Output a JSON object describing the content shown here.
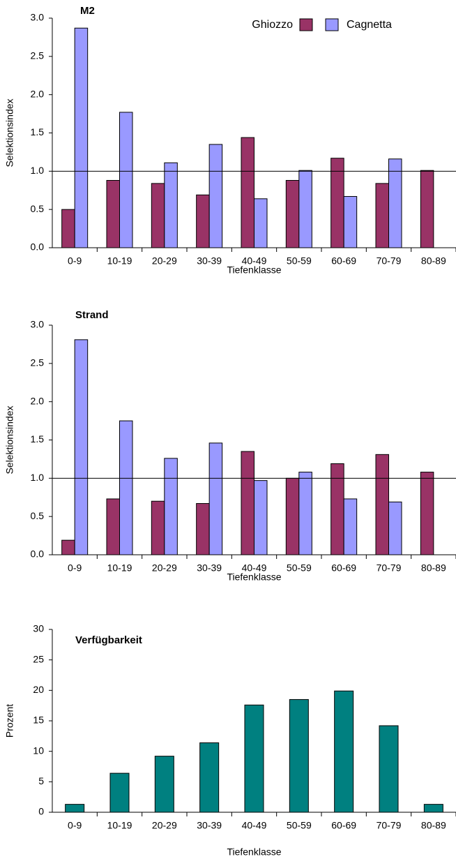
{
  "chart_data": [
    {
      "type": "bar",
      "title": "M2",
      "x_label": "Tiefenklasse",
      "y_label": "Selektionsindex",
      "categories": [
        "0-9",
        "10-19",
        "20-29",
        "30-39",
        "40-49",
        "50-59",
        "60-69",
        "70-79",
        "80-89"
      ],
      "series": [
        {
          "name": "Ghiozzo",
          "color": "#993366",
          "values": [
            0.5,
            0.88,
            0.84,
            0.69,
            1.44,
            0.88,
            1.17,
            0.84,
            1.01
          ]
        },
        {
          "name": "Cagnetta",
          "color": "#9999ff",
          "values": [
            2.87,
            1.77,
            1.11,
            1.35,
            0.64,
            1.01,
            0.67,
            1.16,
            null
          ]
        }
      ],
      "ylim": [
        0,
        3
      ],
      "yticks": [
        {
          "value": 0,
          "label": "0.0"
        },
        {
          "value": 0.5,
          "label": "0.5"
        },
        {
          "value": 1,
          "label": "1.0"
        },
        {
          "value": 1.5,
          "label": "1.5"
        },
        {
          "value": 2,
          "label": "2.0"
        },
        {
          "value": 2.5,
          "label": "2.5"
        },
        {
          "value": 3,
          "label": "3.0"
        }
      ],
      "reference_line": 1,
      "legend": "top"
    },
    {
      "type": "bar",
      "title": "Strand",
      "x_label": "Tiefenklasse",
      "y_label": "Selektionsindex",
      "categories": [
        "0-9",
        "10-19",
        "20-29",
        "30-39",
        "40-49",
        "50-59",
        "60-69",
        "70-79",
        "80-89"
      ],
      "series": [
        {
          "color": "#993366",
          "values": [
            0.19,
            0.73,
            0.7,
            0.67,
            1.35,
            1.0,
            1.19,
            1.31,
            1.08
          ]
        },
        {
          "color": "#9999ff",
          "values": [
            2.81,
            1.75,
            1.26,
            1.46,
            0.97,
            1.08,
            0.73,
            0.69,
            null
          ]
        }
      ],
      "ylim": [
        0,
        3
      ],
      "yticks": [
        {
          "value": 0,
          "label": "0.0"
        },
        {
          "value": 0.5,
          "label": "0.5"
        },
        {
          "value": 1,
          "label": "1.0"
        },
        {
          "value": 1.5,
          "label": "1.5"
        },
        {
          "value": 2,
          "label": "2.0"
        },
        {
          "value": 2.5,
          "label": "2.5"
        },
        {
          "value": 3,
          "label": "3.0"
        }
      ],
      "reference_line": 1
    },
    {
      "type": "bar",
      "title": "Verfügbarkeit",
      "x_label": "Tiefenklasse",
      "y_label": "Prozent",
      "categories": [
        "0-9",
        "10-19",
        "20-29",
        "30-39",
        "40-49",
        "50-59",
        "60-69",
        "70-79",
        "80-89"
      ],
      "values": [
        1.3,
        6.4,
        9.2,
        11.4,
        17.6,
        18.5,
        19.9,
        14.2,
        1.3
      ],
      "color": "#008080",
      "ylim": [
        0,
        30
      ],
      "yticks": [
        0,
        5,
        10,
        15,
        20,
        25,
        30
      ]
    }
  ]
}
